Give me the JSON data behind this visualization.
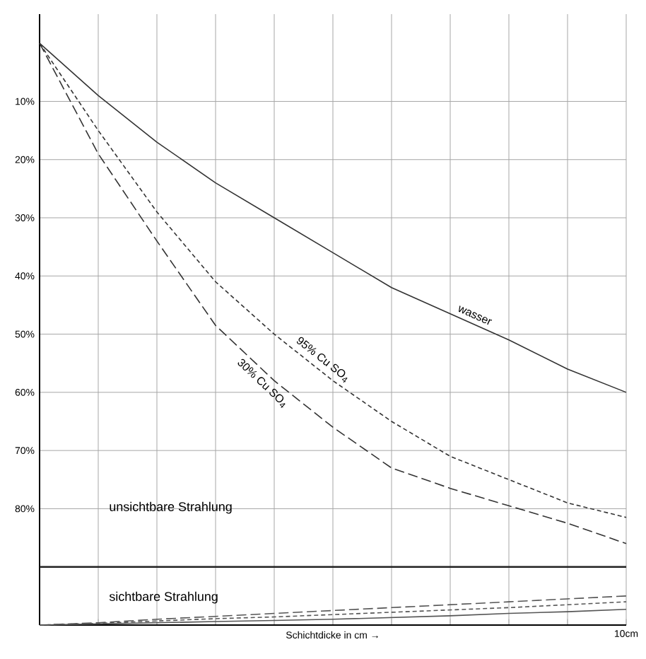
{
  "chart_data": {
    "type": "line",
    "xlabel": "Schichtdicke in cm →",
    "categories": [
      null,
      null,
      null,
      null,
      null,
      null,
      null,
      null,
      null,
      null,
      null
    ],
    "ylim": [
      100,
      -5
    ],
    "yticks": [
      {
        "value": 10,
        "label": "10%"
      },
      {
        "value": 20,
        "label": "20%"
      },
      {
        "value": 30,
        "label": "30%"
      },
      {
        "value": 40,
        "label": "40%"
      },
      {
        "value": 50,
        "label": "50%"
      },
      {
        "value": 60,
        "label": "60%"
      },
      {
        "value": 70,
        "label": "70%"
      },
      {
        "value": 80,
        "label": "80%"
      }
    ],
    "tick_labels": "y",
    "grid": true,
    "series": [
      {
        "name": "wasser",
        "color": "#333333",
        "line_style": "solid",
        "values": [
          0,
          9,
          17,
          24,
          30,
          36,
          42,
          46.5,
          51,
          56,
          60
        ]
      },
      {
        "name": "95% Cu SO$_{4}$",
        "color": "#333333",
        "line_style": "dotted",
        "values": [
          0,
          15,
          29,
          41,
          50,
          58,
          65,
          71,
          75,
          79,
          81.5
        ]
      },
      {
        "name": "30% Cu SO$_{4}$",
        "color": "#333333",
        "line_style": "dashed",
        "values": [
          0,
          19,
          34,
          48.5,
          58,
          66,
          73,
          76.5,
          79.5,
          82.5,
          86
        ]
      },
      {
        "color": "#555555",
        "line_style": "dashed",
        "values": [
          100,
          99.6,
          99,
          98.5,
          98,
          97.5,
          97,
          96.5,
          96,
          95.5,
          95
        ]
      },
      {
        "color": "#555555",
        "line_style": "dotted",
        "values": [
          100,
          99.7,
          99.3,
          98.9,
          98.6,
          98.2,
          97.8,
          97.4,
          97,
          96.5,
          96
        ]
      },
      {
        "color": "#555555",
        "line_style": "solid",
        "values": [
          100,
          99.8,
          99.6,
          99.4,
          99.2,
          99,
          98.7,
          98.4,
          98,
          97.7,
          97.3
        ]
      }
    ],
    "ref_lines": [
      {
        "axis": "y",
        "value": 90,
        "color": "#222222"
      }
    ],
    "annotations": [
      "unsichtbare Strahlung",
      "sichtbare Strahlung",
      "10cm"
    ]
  }
}
